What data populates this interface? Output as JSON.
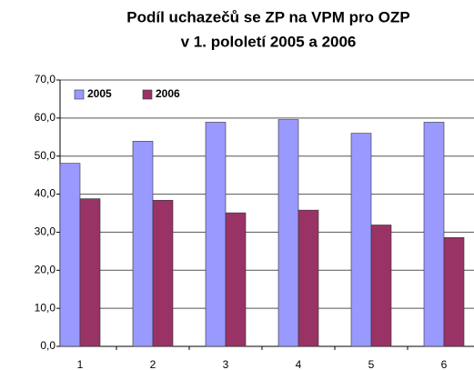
{
  "chart_data": {
    "type": "bar",
    "title": "Podíl uchazečů se ZP na VPM pro OZP",
    "subtitle": "v 1. pololetí 2005 a 2006",
    "categories": [
      "1",
      "2",
      "3",
      "4",
      "5",
      "6"
    ],
    "series": [
      {
        "name": "2005",
        "color": "#9999ff",
        "values": [
          48.1,
          53.9,
          58.9,
          59.6,
          56.0,
          58.9
        ]
      },
      {
        "name": "2006",
        "color": "#993366",
        "values": [
          38.8,
          38.4,
          35.1,
          35.8,
          31.9,
          28.6
        ]
      }
    ],
    "ylim": [
      0,
      70
    ],
    "yticks": [
      {
        "value": 0,
        "label": "0,0"
      },
      {
        "value": 10,
        "label": "10,0"
      },
      {
        "value": 20,
        "label": "20,0"
      },
      {
        "value": 30,
        "label": "30,0"
      },
      {
        "value": 40,
        "label": "40,0"
      },
      {
        "value": 50,
        "label": "50,0"
      },
      {
        "value": 60,
        "label": "60,0"
      },
      {
        "value": 70,
        "label": "70,0"
      }
    ],
    "grid": true,
    "legend": "top-left"
  }
}
